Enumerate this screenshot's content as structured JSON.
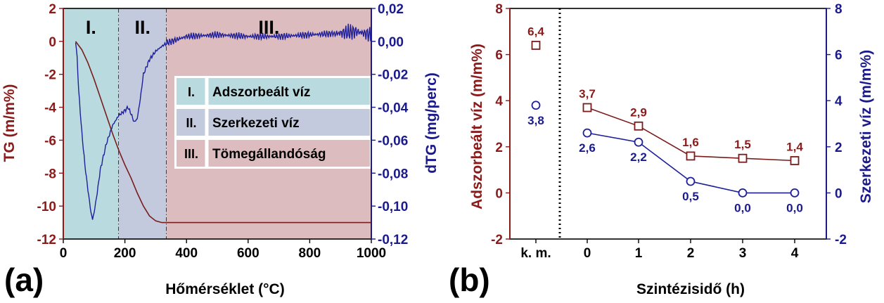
{
  "panel_labels": {
    "a": "(a)",
    "b": "(b)"
  },
  "colors": {
    "tg": "#7a1c1c",
    "dtg": "#1f1f9a",
    "zone1": "#b9dbe0",
    "zone2": "#c3cade",
    "zone3": "#ddbcbf"
  },
  "chart_data": [
    {
      "id": "a",
      "type": "line",
      "xlabel": "Hőmérséklet (°C)",
      "ylabel": "TG (m/m%)",
      "y2label": "dTG (mg/perc)",
      "xlim": [
        0,
        1000
      ],
      "ylim": [
        -12,
        2
      ],
      "y2lim": [
        -0.12,
        0.02
      ],
      "xticks": [
        0,
        200,
        400,
        600,
        800,
        1000
      ],
      "yticks": [
        2,
        0,
        -2,
        -4,
        -6,
        -8,
        -10,
        -12
      ],
      "y2ticks": [
        "0,02",
        "0,00",
        "-0,02",
        "-0,04",
        "-0,06",
        "-0,08",
        "-0,10",
        "-0,12"
      ],
      "zones": [
        {
          "label": "I.",
          "from": 0,
          "to": 180
        },
        {
          "label": "II.",
          "from": 180,
          "to": 335
        },
        {
          "label": "III.",
          "from": 335,
          "to": 1000
        }
      ],
      "legend": [
        {
          "key": "I.",
          "text": "Adszorbeált víz"
        },
        {
          "key": "II.",
          "text": "Szerkezeti víz"
        },
        {
          "key": "III.",
          "text": "Tömegállandóság"
        }
      ],
      "series": [
        {
          "axis": "left",
          "x": [
            40,
            60,
            80,
            100,
            120,
            140,
            160,
            180,
            200,
            220,
            240,
            260,
            280,
            300,
            320,
            340,
            360,
            400,
            500,
            600,
            700,
            800,
            900,
            1000
          ],
          "y": [
            0,
            -0.5,
            -1.3,
            -2.3,
            -3.4,
            -4.5,
            -5.6,
            -6.6,
            -7.5,
            -8.3,
            -9.2,
            -10.0,
            -10.6,
            -10.9,
            -11.0,
            -11.0,
            -11.0,
            -11.0,
            -11.0,
            -11.0,
            -11.0,
            -11.0,
            -11.0,
            -11.0
          ]
        },
        {
          "axis": "right",
          "x": [
            40,
            45,
            50,
            60,
            70,
            80,
            90,
            95,
            100,
            110,
            120,
            140,
            160,
            180,
            200,
            210,
            220,
            230,
            240,
            250,
            260,
            280,
            300,
            320,
            335,
            400,
            500,
            600,
            700,
            800,
            900,
            950,
            1000
          ],
          "y": [
            0.0,
            -0.01,
            -0.03,
            -0.055,
            -0.075,
            -0.09,
            -0.104,
            -0.108,
            -0.104,
            -0.092,
            -0.078,
            -0.062,
            -0.051,
            -0.045,
            -0.042,
            -0.04,
            -0.044,
            -0.049,
            -0.047,
            -0.035,
            -0.02,
            -0.011,
            -0.006,
            -0.003,
            -0.001,
            0.003,
            0.004,
            0.003,
            0.003,
            0.004,
            0.005,
            0.006,
            0.004
          ]
        }
      ]
    },
    {
      "id": "b",
      "type": "scatter",
      "xlabel": "Szintézisidő (h)",
      "ylabel": "Adszorbeált víz (m/m%)",
      "y2label": "Szerkezeti víz (m/m%)",
      "categories": [
        "k. m.",
        "0",
        "1",
        "2",
        "3",
        "4"
      ],
      "ylim": [
        -2,
        8
      ],
      "y2lim": [
        -2,
        8
      ],
      "yticks": [
        8,
        6,
        4,
        2,
        0,
        -2
      ],
      "series": [
        {
          "axis": "left",
          "values": [
            6.4,
            3.7,
            2.9,
            1.6,
            1.5,
            1.4
          ],
          "labels": [
            "6,4",
            "3,7",
            "2,9",
            "1,6",
            "1,5",
            "1,4"
          ]
        },
        {
          "axis": "right",
          "values": [
            3.8,
            2.6,
            2.2,
            0.5,
            0.0,
            0.0
          ],
          "labels": [
            "3,8",
            "2,6",
            "2,2",
            "0,5",
            "0,0",
            "0,0"
          ]
        }
      ]
    }
  ]
}
